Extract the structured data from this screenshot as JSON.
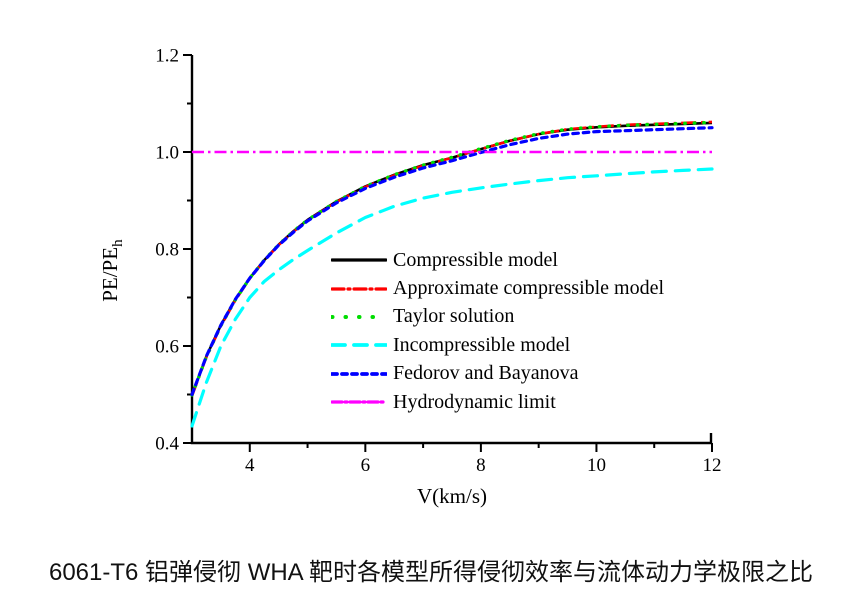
{
  "caption": "6061-T6 铝弹侵彻 WHA 靶时各模型所得侵彻效率与流体动力学极限之比",
  "chart_data": {
    "type": "line",
    "title": "",
    "legend_position": "inside-middle-right",
    "grid": "off",
    "x_axis": {
      "label": "V(km/s)",
      "range": [
        3,
        12
      ],
      "major_ticks": [
        4,
        6,
        8,
        10,
        12
      ],
      "major_tick_labels": [
        "4",
        "6",
        "8",
        "10",
        "12"
      ],
      "minor_ticks": [
        5,
        7,
        9,
        11
      ]
    },
    "y_axis": {
      "label_main": "PE/PE",
      "label_sub": "h",
      "range": [
        0.4,
        1.2
      ],
      "major_ticks": [
        0.4,
        0.6,
        0.8,
        1.0,
        1.2
      ],
      "major_tick_labels": [
        "0.4",
        "0.6",
        "0.8",
        "1.0",
        "1.2"
      ],
      "minor_ticks": [
        0.5,
        0.7,
        0.9,
        1.1
      ]
    },
    "x": [
      3,
      3.25,
      3.5,
      3.75,
      4,
      4.25,
      4.5,
      4.75,
      5,
      5.5,
      6,
      6.5,
      7,
      7.5,
      8,
      8.5,
      9,
      9.5,
      10,
      10.5,
      11,
      11.5,
      12
    ],
    "series": [
      {
        "name": "Compressible model",
        "color": "#000000",
        "line_style": "solid",
        "values": [
          0.5,
          0.579,
          0.643,
          0.696,
          0.74,
          0.777,
          0.809,
          0.836,
          0.86,
          0.898,
          0.929,
          0.953,
          0.973,
          0.988,
          1.006,
          1.023,
          1.037,
          1.046,
          1.051,
          1.054,
          1.056,
          1.058,
          1.06
        ]
      },
      {
        "name": "Approximate compressible model",
        "color": "#ff0000",
        "line_style": "dash-dot",
        "values": [
          0.497,
          0.577,
          0.641,
          0.694,
          0.739,
          0.776,
          0.808,
          0.835,
          0.859,
          0.897,
          0.928,
          0.952,
          0.972,
          0.988,
          1.006,
          1.023,
          1.037,
          1.047,
          1.052,
          1.056,
          1.058,
          1.06,
          1.062
        ]
      },
      {
        "name": "Taylor solution",
        "color": "#00dd00",
        "line_style": "dot",
        "values": [
          0.499,
          0.578,
          0.642,
          0.695,
          0.74,
          0.777,
          0.809,
          0.836,
          0.86,
          0.898,
          0.929,
          0.953,
          0.973,
          0.989,
          1.007,
          1.024,
          1.038,
          1.047,
          1.052,
          1.055,
          1.057,
          1.059,
          1.061
        ]
      },
      {
        "name": "Incompressible model",
        "color": "#00ffff",
        "line_style": "dash",
        "values": [
          0.435,
          0.525,
          0.6,
          0.655,
          0.7,
          0.733,
          0.757,
          0.778,
          0.797,
          0.833,
          0.865,
          0.888,
          0.905,
          0.917,
          0.926,
          0.934,
          0.941,
          0.947,
          0.951,
          0.955,
          0.959,
          0.962,
          0.965
        ]
      },
      {
        "name": "Fedorov and Bayanova",
        "color": "#0000ff",
        "line_style": "short-dash",
        "values": [
          0.5,
          0.579,
          0.643,
          0.696,
          0.74,
          0.776,
          0.808,
          0.834,
          0.858,
          0.895,
          0.925,
          0.948,
          0.967,
          0.982,
          0.999,
          1.015,
          1.028,
          1.037,
          1.042,
          1.044,
          1.046,
          1.048,
          1.05
        ]
      },
      {
        "name": "Hydrodynamic limit",
        "color": "#ff00ff",
        "line_style": "dash-dot-dense",
        "values": [
          1.0,
          1.0,
          1.0,
          1.0,
          1.0,
          1.0,
          1.0,
          1.0,
          1.0,
          1.0,
          1.0,
          1.0,
          1.0,
          1.0,
          1.0,
          1.0,
          1.0,
          1.0,
          1.0,
          1.0,
          1.0,
          1.0,
          1.0
        ]
      }
    ]
  }
}
